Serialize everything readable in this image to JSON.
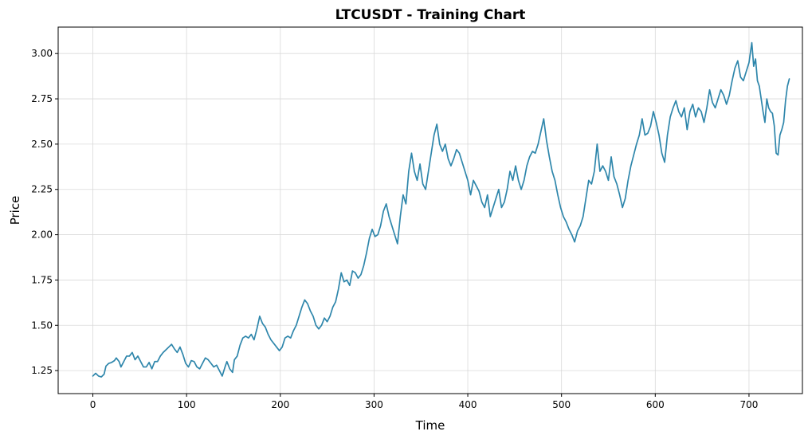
{
  "chart_data": {
    "type": "line",
    "title": "LTCUSDT - Training Chart",
    "xlabel": "Time",
    "ylabel": "Price",
    "xlim": [
      -37,
      757
    ],
    "ylim": [
      1.123,
      3.146
    ],
    "x_ticks": [
      0,
      100,
      200,
      300,
      400,
      500,
      600,
      700
    ],
    "x_tick_labels": [
      "0",
      "100",
      "200",
      "300",
      "400",
      "500",
      "600",
      "700"
    ],
    "y_ticks": [
      1.25,
      1.5,
      1.75,
      2.0,
      2.25,
      2.5,
      2.75,
      3.0
    ],
    "y_tick_labels": [
      "1.25",
      "1.50",
      "1.75",
      "2.00",
      "2.25",
      "2.50",
      "2.75",
      "3.00"
    ],
    "grid": true,
    "legend": "none",
    "line_color": "#2e86ab",
    "series": [
      {
        "points": [
          [
            0,
            1.22
          ],
          [
            3,
            1.235
          ],
          [
            6,
            1.22
          ],
          [
            9,
            1.215
          ],
          [
            12,
            1.23
          ],
          [
            14,
            1.275
          ],
          [
            17,
            1.29
          ],
          [
            20,
            1.295
          ],
          [
            23,
            1.305
          ],
          [
            25,
            1.32
          ],
          [
            28,
            1.3
          ],
          [
            30,
            1.27
          ],
          [
            33,
            1.3
          ],
          [
            36,
            1.33
          ],
          [
            39,
            1.33
          ],
          [
            42,
            1.35
          ],
          [
            45,
            1.31
          ],
          [
            48,
            1.33
          ],
          [
            51,
            1.3
          ],
          [
            54,
            1.27
          ],
          [
            57,
            1.27
          ],
          [
            60,
            1.295
          ],
          [
            63,
            1.26
          ],
          [
            66,
            1.3
          ],
          [
            69,
            1.3
          ],
          [
            72,
            1.33
          ],
          [
            75,
            1.35
          ],
          [
            78,
            1.365
          ],
          [
            81,
            1.38
          ],
          [
            84,
            1.395
          ],
          [
            87,
            1.37
          ],
          [
            90,
            1.35
          ],
          [
            93,
            1.38
          ],
          [
            96,
            1.34
          ],
          [
            99,
            1.29
          ],
          [
            102,
            1.27
          ],
          [
            105,
            1.305
          ],
          [
            108,
            1.3
          ],
          [
            111,
            1.27
          ],
          [
            114,
            1.26
          ],
          [
            117,
            1.29
          ],
          [
            120,
            1.32
          ],
          [
            123,
            1.31
          ],
          [
            126,
            1.29
          ],
          [
            129,
            1.27
          ],
          [
            132,
            1.28
          ],
          [
            135,
            1.25
          ],
          [
            138,
            1.22
          ],
          [
            141,
            1.27
          ],
          [
            143,
            1.3
          ],
          [
            146,
            1.26
          ],
          [
            149,
            1.24
          ],
          [
            151,
            1.31
          ],
          [
            154,
            1.33
          ],
          [
            157,
            1.39
          ],
          [
            160,
            1.43
          ],
          [
            163,
            1.44
          ],
          [
            166,
            1.43
          ],
          [
            169,
            1.45
          ],
          [
            172,
            1.42
          ],
          [
            175,
            1.48
          ],
          [
            178,
            1.55
          ],
          [
            181,
            1.51
          ],
          [
            184,
            1.49
          ],
          [
            187,
            1.45
          ],
          [
            190,
            1.42
          ],
          [
            193,
            1.4
          ],
          [
            196,
            1.38
          ],
          [
            199,
            1.36
          ],
          [
            202,
            1.38
          ],
          [
            205,
            1.43
          ],
          [
            208,
            1.44
          ],
          [
            211,
            1.43
          ],
          [
            214,
            1.47
          ],
          [
            217,
            1.5
          ],
          [
            220,
            1.55
          ],
          [
            223,
            1.6
          ],
          [
            226,
            1.64
          ],
          [
            229,
            1.62
          ],
          [
            232,
            1.58
          ],
          [
            235,
            1.55
          ],
          [
            238,
            1.5
          ],
          [
            241,
            1.48
          ],
          [
            244,
            1.5
          ],
          [
            247,
            1.54
          ],
          [
            250,
            1.52
          ],
          [
            253,
            1.55
          ],
          [
            256,
            1.6
          ],
          [
            259,
            1.63
          ],
          [
            262,
            1.7
          ],
          [
            265,
            1.79
          ],
          [
            268,
            1.74
          ],
          [
            271,
            1.75
          ],
          [
            274,
            1.72
          ],
          [
            277,
            1.8
          ],
          [
            280,
            1.79
          ],
          [
            283,
            1.76
          ],
          [
            286,
            1.78
          ],
          [
            289,
            1.83
          ],
          [
            292,
            1.9
          ],
          [
            295,
            1.98
          ],
          [
            298,
            2.03
          ],
          [
            301,
            1.99
          ],
          [
            304,
            2.0
          ],
          [
            307,
            2.05
          ],
          [
            310,
            2.13
          ],
          [
            313,
            2.17
          ],
          [
            316,
            2.1
          ],
          [
            319,
            2.05
          ],
          [
            322,
            2.0
          ],
          [
            325,
            1.95
          ],
          [
            328,
            2.1
          ],
          [
            331,
            2.22
          ],
          [
            334,
            2.17
          ],
          [
            337,
            2.35
          ],
          [
            340,
            2.45
          ],
          [
            343,
            2.35
          ],
          [
            346,
            2.3
          ],
          [
            349,
            2.39
          ],
          [
            352,
            2.28
          ],
          [
            355,
            2.25
          ],
          [
            358,
            2.35
          ],
          [
            361,
            2.45
          ],
          [
            364,
            2.55
          ],
          [
            367,
            2.61
          ],
          [
            370,
            2.5
          ],
          [
            373,
            2.46
          ],
          [
            376,
            2.5
          ],
          [
            379,
            2.42
          ],
          [
            382,
            2.38
          ],
          [
            385,
            2.42
          ],
          [
            388,
            2.47
          ],
          [
            391,
            2.45
          ],
          [
            394,
            2.4
          ],
          [
            397,
            2.35
          ],
          [
            400,
            2.3
          ],
          [
            403,
            2.22
          ],
          [
            406,
            2.3
          ],
          [
            409,
            2.27
          ],
          [
            412,
            2.24
          ],
          [
            415,
            2.18
          ],
          [
            418,
            2.15
          ],
          [
            421,
            2.22
          ],
          [
            424,
            2.1
          ],
          [
            427,
            2.15
          ],
          [
            430,
            2.2
          ],
          [
            433,
            2.25
          ],
          [
            436,
            2.15
          ],
          [
            439,
            2.18
          ],
          [
            442,
            2.25
          ],
          [
            445,
            2.35
          ],
          [
            448,
            2.3
          ],
          [
            451,
            2.38
          ],
          [
            454,
            2.3
          ],
          [
            457,
            2.25
          ],
          [
            460,
            2.3
          ],
          [
            463,
            2.38
          ],
          [
            466,
            2.43
          ],
          [
            469,
            2.46
          ],
          [
            472,
            2.45
          ],
          [
            475,
            2.5
          ],
          [
            478,
            2.57
          ],
          [
            481,
            2.64
          ],
          [
            484,
            2.52
          ],
          [
            487,
            2.43
          ],
          [
            490,
            2.35
          ],
          [
            493,
            2.3
          ],
          [
            496,
            2.22
          ],
          [
            499,
            2.15
          ],
          [
            502,
            2.1
          ],
          [
            505,
            2.07
          ],
          [
            508,
            2.03
          ],
          [
            511,
            2.0
          ],
          [
            514,
            1.96
          ],
          [
            517,
            2.02
          ],
          [
            520,
            2.05
          ],
          [
            523,
            2.1
          ],
          [
            526,
            2.2
          ],
          [
            529,
            2.3
          ],
          [
            532,
            2.28
          ],
          [
            535,
            2.35
          ],
          [
            538,
            2.5
          ],
          [
            541,
            2.35
          ],
          [
            544,
            2.38
          ],
          [
            547,
            2.35
          ],
          [
            550,
            2.3
          ],
          [
            553,
            2.43
          ],
          [
            556,
            2.32
          ],
          [
            559,
            2.28
          ],
          [
            562,
            2.22
          ],
          [
            565,
            2.15
          ],
          [
            568,
            2.2
          ],
          [
            571,
            2.3
          ],
          [
            574,
            2.38
          ],
          [
            577,
            2.44
          ],
          [
            580,
            2.5
          ],
          [
            583,
            2.55
          ],
          [
            586,
            2.64
          ],
          [
            589,
            2.55
          ],
          [
            592,
            2.56
          ],
          [
            595,
            2.6
          ],
          [
            598,
            2.68
          ],
          [
            601,
            2.62
          ],
          [
            604,
            2.55
          ],
          [
            607,
            2.45
          ],
          [
            610,
            2.4
          ],
          [
            613,
            2.55
          ],
          [
            616,
            2.65
          ],
          [
            619,
            2.7
          ],
          [
            622,
            2.74
          ],
          [
            625,
            2.68
          ],
          [
            628,
            2.65
          ],
          [
            631,
            2.7
          ],
          [
            634,
            2.58
          ],
          [
            637,
            2.68
          ],
          [
            640,
            2.72
          ],
          [
            643,
            2.65
          ],
          [
            646,
            2.7
          ],
          [
            649,
            2.68
          ],
          [
            652,
            2.62
          ],
          [
            655,
            2.7
          ],
          [
            658,
            2.8
          ],
          [
            661,
            2.73
          ],
          [
            664,
            2.7
          ],
          [
            667,
            2.75
          ],
          [
            670,
            2.8
          ],
          [
            673,
            2.77
          ],
          [
            676,
            2.72
          ],
          [
            679,
            2.77
          ],
          [
            682,
            2.85
          ],
          [
            685,
            2.92
          ],
          [
            688,
            2.96
          ],
          [
            691,
            2.87
          ],
          [
            694,
            2.85
          ],
          [
            697,
            2.9
          ],
          [
            700,
            2.95
          ],
          [
            703,
            3.06
          ],
          [
            705,
            2.93
          ],
          [
            707,
            2.97
          ],
          [
            709,
            2.85
          ],
          [
            711,
            2.82
          ],
          [
            713,
            2.75
          ],
          [
            715,
            2.68
          ],
          [
            717,
            2.62
          ],
          [
            719,
            2.75
          ],
          [
            721,
            2.7
          ],
          [
            723,
            2.68
          ],
          [
            725,
            2.67
          ],
          [
            727,
            2.6
          ],
          [
            729,
            2.45
          ],
          [
            731,
            2.44
          ],
          [
            733,
            2.55
          ],
          [
            735,
            2.58
          ],
          [
            737,
            2.62
          ],
          [
            739,
            2.74
          ],
          [
            741,
            2.82
          ],
          [
            743,
            2.86
          ]
        ]
      }
    ]
  }
}
